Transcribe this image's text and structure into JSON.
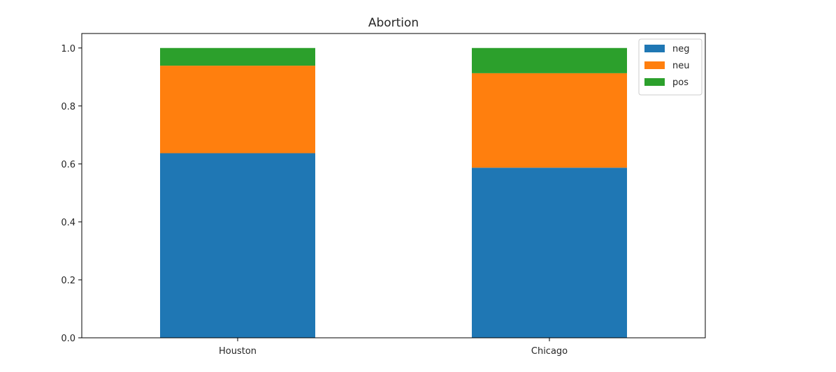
{
  "chart_data": {
    "type": "bar",
    "stacked": true,
    "title": "Abortion",
    "xlabel": "",
    "ylabel": "",
    "categories": [
      "Houston",
      "Chicago"
    ],
    "series": [
      {
        "name": "neg",
        "color": "#1f77b4",
        "values": [
          0.637,
          0.587
        ]
      },
      {
        "name": "neu",
        "color": "#ff7f0e",
        "values": [
          0.302,
          0.326
        ]
      },
      {
        "name": "pos",
        "color": "#2ca02c",
        "values": [
          0.061,
          0.087
        ]
      }
    ],
    "ylim": [
      0,
      1.05
    ],
    "yticks": [
      "0.0",
      "0.2",
      "0.4",
      "0.6",
      "0.8",
      "1.0"
    ],
    "ytick_values": [
      0.0,
      0.2,
      0.4,
      0.6,
      0.8,
      1.0
    ],
    "grid": false,
    "legend_position": "top-right"
  }
}
